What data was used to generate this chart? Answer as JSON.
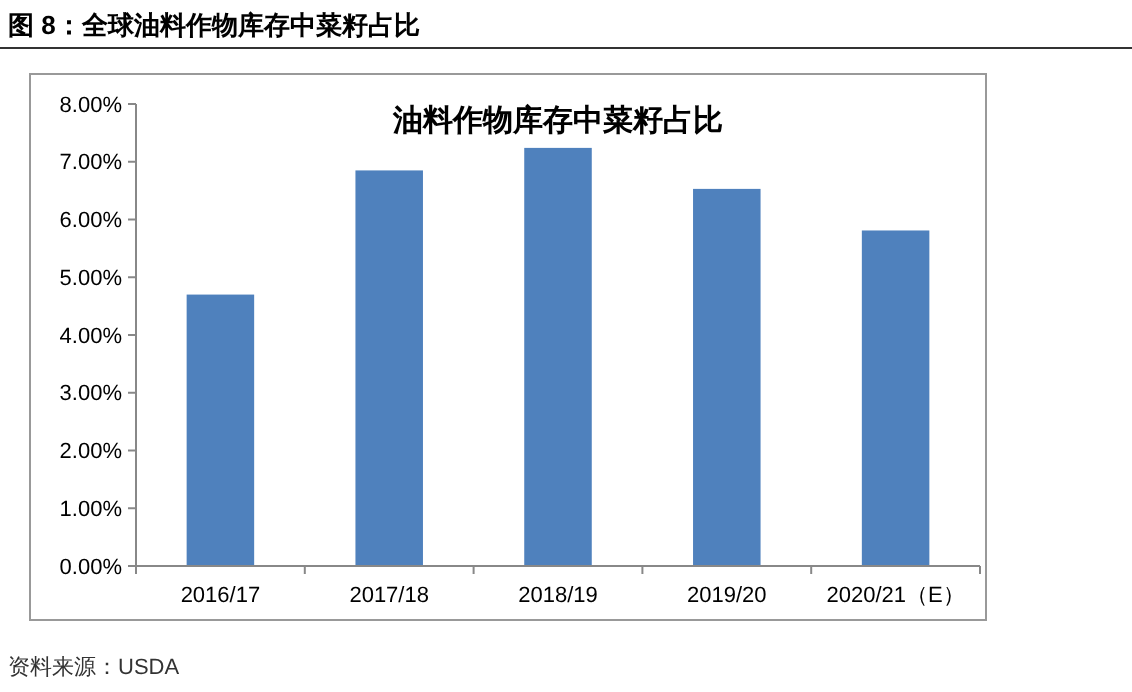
{
  "chart_data": {
    "type": "bar",
    "title": "图 8：全球油料作物库存中菜籽占比",
    "subtitle": "油料作物库存中菜籽占比",
    "categories": [
      "2016/17",
      "2017/18",
      "2018/19",
      "2019/20",
      "2020/21（E）"
    ],
    "values": [
      4.7,
      6.85,
      7.24,
      6.53,
      5.81
    ],
    "color": "#4f81bd",
    "ylim": [
      0,
      8
    ],
    "yticks": [
      {
        "value": 0,
        "label": "0.00%"
      },
      {
        "value": 1,
        "label": "1.00%"
      },
      {
        "value": 2,
        "label": "2.00%"
      },
      {
        "value": 3,
        "label": "3.00%"
      },
      {
        "value": 4,
        "label": "4.00%"
      },
      {
        "value": 5,
        "label": "5.00%"
      },
      {
        "value": 6,
        "label": "6.00%"
      },
      {
        "value": 7,
        "label": "7.00%"
      },
      {
        "value": 8,
        "label": "8.00%"
      }
    ],
    "grid": false,
    "annotations": [
      "资料来源：USDA"
    ]
  }
}
